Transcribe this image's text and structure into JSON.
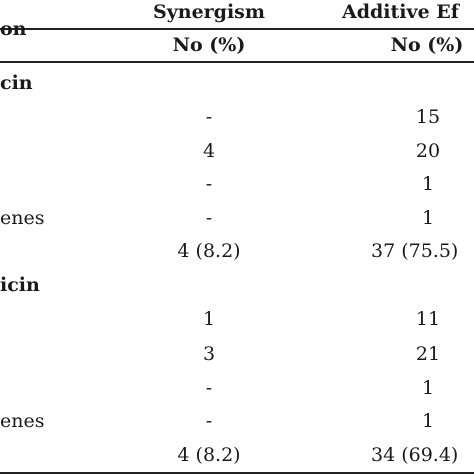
{
  "header": {
    "col0": "on",
    "col1_title": "Synergism",
    "col1_sub": "No (%)",
    "col2_title": "Additive Ef",
    "col2_sub": "No (%)"
  },
  "sections": [
    {
      "title": "cin",
      "rows": [
        {
          "label": "",
          "syn": "-",
          "add": "15"
        },
        {
          "label": "",
          "syn": "4",
          "add": "20"
        },
        {
          "label": "",
          "syn": "-",
          "add": "1"
        },
        {
          "label": "enes",
          "syn": "-",
          "add": "1"
        },
        {
          "label": "",
          "syn": "4 (8.2)",
          "add": "37 (75.5)"
        }
      ]
    },
    {
      "title": "icin",
      "rows": [
        {
          "label": "",
          "syn": "1",
          "add": "11"
        },
        {
          "label": "",
          "syn": "3",
          "add": "21"
        },
        {
          "label": "",
          "syn": "-",
          "add": "1"
        },
        {
          "label": "enes",
          "syn": "-",
          "add": "1"
        },
        {
          "label": "",
          "syn": "4 (8.2)",
          "add": "34 (69.4)"
        }
      ]
    }
  ]
}
